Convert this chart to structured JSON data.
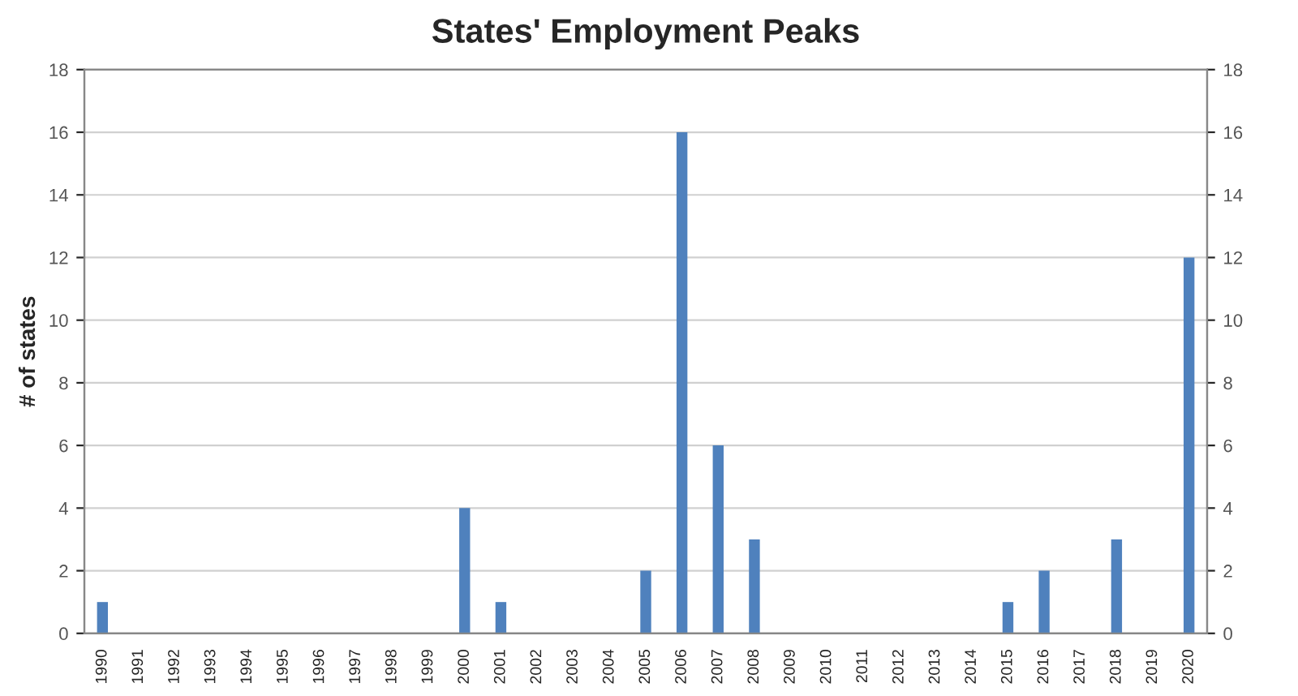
{
  "chart_data": {
    "type": "bar",
    "title": "States' Employment Peaks",
    "ylabel": "# of states",
    "categories": [
      "1990",
      "1991",
      "1992",
      "1993",
      "1994",
      "1995",
      "1996",
      "1997",
      "1998",
      "1999",
      "2000",
      "2001",
      "2002",
      "2003",
      "2004",
      "2005",
      "2006",
      "2007",
      "2008",
      "2009",
      "2010",
      "2011",
      "2012",
      "2013",
      "2014",
      "2015",
      "2016",
      "2017",
      "2018",
      "2019",
      "2020"
    ],
    "values": [
      1,
      0,
      0,
      0,
      0,
      0,
      0,
      0,
      0,
      0,
      4,
      1,
      0,
      0,
      0,
      2,
      16,
      6,
      3,
      0,
      0,
      0,
      0,
      0,
      0,
      1,
      2,
      0,
      3,
      0,
      12
    ],
    "color": "#4f81bd",
    "ylim": [
      0,
      18
    ],
    "yticks": [
      0,
      2,
      4,
      6,
      8,
      10,
      12,
      14,
      16,
      18
    ],
    "y2lim": [
      0,
      18
    ],
    "y2ticks": [
      0,
      2,
      4,
      6,
      8,
      10,
      12,
      14,
      16,
      18
    ],
    "grid": "y",
    "legend": false
  }
}
